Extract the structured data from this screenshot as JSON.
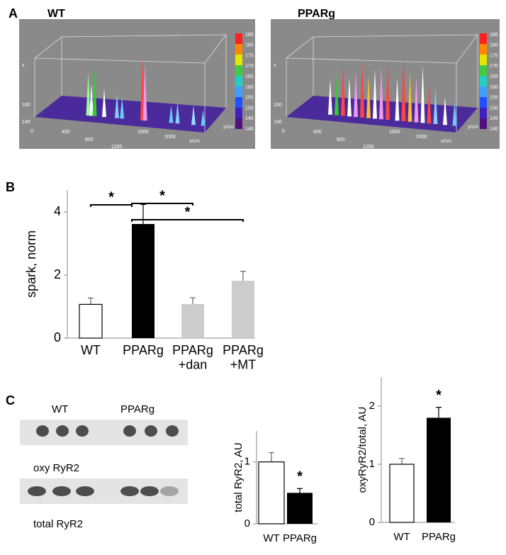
{
  "panel_labels": [
    "A",
    "B",
    "C"
  ],
  "surface_plots": [
    {
      "title": "WT",
      "z_label": "z",
      "z_ticks": [
        160,
        140
      ],
      "x_ticks": [
        0,
        400,
        800,
        1200,
        1600,
        2000
      ],
      "x_label": "x/cm",
      "y_label": "y/cm",
      "colorbar_ticks": [
        185,
        180,
        175,
        170,
        165,
        160,
        155,
        150,
        145,
        140
      ]
    },
    {
      "title": "PPARg",
      "z_label": "z",
      "z_ticks": [
        160,
        140
      ],
      "x_ticks": [
        0,
        400,
        800,
        1200,
        1600,
        2000
      ],
      "x_label": "x/cm",
      "y_label": "y/cm",
      "colorbar_ticks": [
        185,
        180,
        175,
        170,
        165,
        160,
        155,
        150,
        145,
        140
      ]
    }
  ],
  "blot": {
    "lane_groups": [
      "WT",
      "PPARg"
    ],
    "rows": [
      "oxy RyR2",
      "total RyR2"
    ]
  },
  "chart_data": [
    {
      "type": "bar",
      "ylabel": "spark, norm",
      "categories": [
        "WT",
        "PPARg",
        "PPARg\n+dan",
        "PPARg\n+MT"
      ],
      "values": [
        1.07,
        3.62,
        1.08,
        1.82
      ],
      "errors": [
        0.2,
        0.62,
        0.2,
        0.3
      ],
      "colors": [
        "#ffffff",
        "#000000",
        "#cccccc",
        "#cccccc"
      ],
      "ylim": [
        0,
        4.7
      ],
      "yticks": [
        0,
        2,
        4
      ],
      "significance": [
        {
          "between": [
            0,
            1
          ],
          "label": "*"
        },
        {
          "between": [
            1,
            2
          ],
          "label": "*"
        },
        {
          "between": [
            1,
            3
          ],
          "label": "*"
        }
      ]
    },
    {
      "type": "bar",
      "ylabel": "total RyR2, AU",
      "categories": [
        "WT",
        "PPARg"
      ],
      "values": [
        1.0,
        0.5
      ],
      "errors": [
        0.15,
        0.07
      ],
      "colors": [
        "#ffffff",
        "#000000"
      ],
      "ylim": [
        0,
        1.5
      ],
      "yticks": [
        0,
        1
      ],
      "significance": [
        {
          "at": 1,
          "label": "*"
        }
      ]
    },
    {
      "type": "bar",
      "ylabel": "oxyRyR2/total, AU",
      "categories": [
        "WT",
        "PPARg"
      ],
      "values": [
        1.0,
        1.8
      ],
      "errors": [
        0.1,
        0.18
      ],
      "colors": [
        "#ffffff",
        "#000000"
      ],
      "ylim": [
        0,
        2.5
      ],
      "yticks": [
        0,
        1,
        2
      ],
      "significance": [
        {
          "at": 1,
          "label": "*"
        }
      ]
    }
  ]
}
